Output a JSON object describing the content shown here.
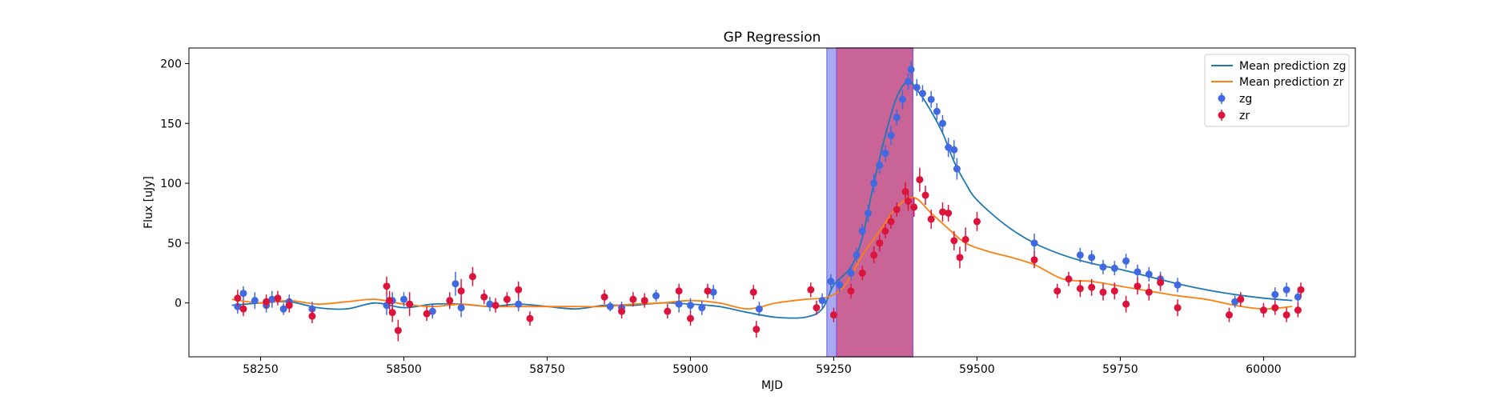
{
  "chart_data": {
    "type": "scatter",
    "title": "GP Regression",
    "xlabel": "MJD",
    "ylabel": "Flux [uJy]",
    "xlim": [
      58125,
      60160
    ],
    "ylim": [
      -45,
      213
    ],
    "xticks": [
      58250,
      58500,
      58750,
      59000,
      59250,
      59500,
      59750,
      60000
    ],
    "yticks": [
      0,
      50,
      100,
      150,
      200
    ],
    "colors": {
      "zg": "#4169e1",
      "zr": "#dc143c",
      "line_zg": "#1f77b4",
      "line_zr": "#ff7f0e",
      "span_zg": "#a0a0f0",
      "span_zr": "#c86496",
      "span_edge": "#9955cc"
    },
    "spans": [
      {
        "name": "zg",
        "x0": 59238,
        "x1": 59388
      },
      {
        "name": "zr",
        "x0": 59255,
        "x1": 59388
      }
    ],
    "legend": {
      "position": "top-right",
      "entries": [
        "Mean prediction zg",
        "Mean prediction zr",
        "zg",
        "zr"
      ]
    },
    "mean_zg": {
      "x": [
        58200,
        58250,
        58300,
        58350,
        58400,
        58450,
        58500,
        58550,
        58600,
        58650,
        58700,
        58750,
        58800,
        58850,
        58900,
        58950,
        59000,
        59050,
        59100,
        59150,
        59200,
        59230,
        59250,
        59280,
        59300,
        59320,
        59340,
        59360,
        59380,
        59400,
        59420,
        59440,
        59460,
        59480,
        59500,
        59550,
        59600,
        59650,
        59700,
        59750,
        59800,
        59850,
        59900,
        59950,
        60000,
        60050
      ],
      "y": [
        -2,
        0,
        1,
        -4,
        -5,
        0,
        -4,
        -1,
        -1,
        -3,
        -1,
        -3,
        -5,
        -2,
        -2,
        0,
        -1,
        -3,
        -8,
        -12,
        -12,
        -5,
        15,
        30,
        55,
        100,
        140,
        172,
        185,
        175,
        160,
        142,
        118,
        100,
        86,
        65,
        50,
        40,
        33,
        28,
        22,
        16,
        11,
        7,
        4,
        2
      ]
    },
    "mean_zr": {
      "x": [
        58200,
        58250,
        58300,
        58350,
        58400,
        58450,
        58500,
        58550,
        58600,
        58650,
        58700,
        58750,
        58800,
        58850,
        58900,
        58950,
        59000,
        59050,
        59100,
        59150,
        59200,
        59240,
        59270,
        59300,
        59330,
        59360,
        59390,
        59420,
        59450,
        59480,
        59520,
        59560,
        59600,
        59650,
        59700,
        59750,
        59800,
        59850,
        59900,
        59950,
        60000,
        60050
      ],
      "y": [
        3,
        0,
        2,
        -1,
        1,
        3,
        -1,
        -3,
        -1,
        -3,
        -3,
        -3,
        -3,
        -3,
        -1,
        0,
        2,
        0,
        -5,
        0,
        3,
        5,
        15,
        40,
        60,
        80,
        88,
        75,
        62,
        50,
        43,
        38,
        32,
        20,
        18,
        14,
        10,
        6,
        3,
        -2,
        -5,
        -3
      ]
    },
    "zg_points": [
      [
        58210,
        -3,
        6
      ],
      [
        58220,
        8,
        6
      ],
      [
        58240,
        2,
        7
      ],
      [
        58260,
        -2,
        6
      ],
      [
        58270,
        3,
        7
      ],
      [
        58290,
        -5,
        5
      ],
      [
        58300,
        1,
        6
      ],
      [
        58340,
        -5,
        6
      ],
      [
        58470,
        -2,
        8
      ],
      [
        58480,
        2,
        7
      ],
      [
        58500,
        3,
        6
      ],
      [
        58550,
        -7,
        6
      ],
      [
        58590,
        16,
        10
      ],
      [
        58600,
        -4,
        8
      ],
      [
        58650,
        -1,
        6
      ],
      [
        58700,
        -1,
        6
      ],
      [
        58860,
        -3,
        4
      ],
      [
        58880,
        -4,
        5
      ],
      [
        58940,
        6,
        5
      ],
      [
        58980,
        -1,
        7
      ],
      [
        59000,
        -2,
        6
      ],
      [
        59020,
        -4,
        6
      ],
      [
        59040,
        9,
        6
      ],
      [
        59120,
        -5,
        6
      ],
      [
        59230,
        2,
        6
      ],
      [
        59245,
        18,
        6
      ],
      [
        59260,
        15,
        6
      ],
      [
        59280,
        25,
        6
      ],
      [
        59290,
        40,
        6
      ],
      [
        59300,
        60,
        6
      ],
      [
        59310,
        75,
        7
      ],
      [
        59320,
        100,
        8
      ],
      [
        59330,
        115,
        7
      ],
      [
        59340,
        125,
        7
      ],
      [
        59350,
        140,
        8
      ],
      [
        59360,
        155,
        7
      ],
      [
        59370,
        170,
        8
      ],
      [
        59380,
        185,
        7
      ],
      [
        59385,
        195,
        7
      ],
      [
        59395,
        180,
        7
      ],
      [
        59405,
        175,
        7
      ],
      [
        59420,
        170,
        7
      ],
      [
        59430,
        160,
        7
      ],
      [
        59440,
        150,
        7
      ],
      [
        59450,
        130,
        8
      ],
      [
        59460,
        128,
        8
      ],
      [
        59465,
        112,
        9
      ],
      [
        59600,
        50,
        8
      ],
      [
        59680,
        40,
        6
      ],
      [
        59700,
        38,
        6
      ],
      [
        59720,
        30,
        6
      ],
      [
        59740,
        29,
        6
      ],
      [
        59760,
        35,
        6
      ],
      [
        59780,
        26,
        6
      ],
      [
        59800,
        24,
        6
      ],
      [
        59820,
        20,
        6
      ],
      [
        59850,
        15,
        6
      ],
      [
        59950,
        1,
        5
      ],
      [
        60020,
        7,
        6
      ],
      [
        60040,
        11,
        6
      ],
      [
        60060,
        5,
        6
      ]
    ],
    "zr_points": [
      [
        58210,
        4,
        7
      ],
      [
        58220,
        -5,
        6
      ],
      [
        58260,
        1,
        6
      ],
      [
        58280,
        4,
        6
      ],
      [
        58300,
        -2,
        6
      ],
      [
        58340,
        -11,
        6
      ],
      [
        58470,
        14,
        8
      ],
      [
        58475,
        2,
        8
      ],
      [
        58480,
        -8,
        8
      ],
      [
        58490,
        -23,
        9
      ],
      [
        58510,
        -1,
        10
      ],
      [
        58540,
        -9,
        6
      ],
      [
        58580,
        2,
        7
      ],
      [
        58600,
        10,
        10
      ],
      [
        58620,
        22,
        8
      ],
      [
        58640,
        5,
        6
      ],
      [
        58660,
        -2,
        6
      ],
      [
        58680,
        3,
        6
      ],
      [
        58700,
        11,
        7
      ],
      [
        58720,
        -13,
        6
      ],
      [
        58850,
        5,
        6
      ],
      [
        58880,
        -7,
        6
      ],
      [
        58900,
        3,
        6
      ],
      [
        58920,
        2,
        6
      ],
      [
        58960,
        -7,
        6
      ],
      [
        58980,
        10,
        6
      ],
      [
        59000,
        -13,
        6
      ],
      [
        59030,
        10,
        6
      ],
      [
        59110,
        9,
        6
      ],
      [
        59115,
        -22,
        7
      ],
      [
        59210,
        11,
        6
      ],
      [
        59220,
        -4,
        6
      ],
      [
        59250,
        -10,
        6
      ],
      [
        59280,
        10,
        6
      ],
      [
        59300,
        25,
        6
      ],
      [
        59320,
        40,
        7
      ],
      [
        59330,
        50,
        7
      ],
      [
        59340,
        60,
        6
      ],
      [
        59350,
        68,
        6
      ],
      [
        59360,
        78,
        6
      ],
      [
        59375,
        93,
        8
      ],
      [
        59380,
        85,
        8
      ],
      [
        59390,
        80,
        8
      ],
      [
        59400,
        103,
        10
      ],
      [
        59410,
        90,
        8
      ],
      [
        59420,
        70,
        8
      ],
      [
        59440,
        76,
        8
      ],
      [
        59450,
        75,
        7
      ],
      [
        59460,
        52,
        8
      ],
      [
        59470,
        38,
        9
      ],
      [
        59480,
        53,
        10
      ],
      [
        59500,
        68,
        8
      ],
      [
        59600,
        36,
        7
      ],
      [
        59640,
        10,
        6
      ],
      [
        59660,
        20,
        6
      ],
      [
        59680,
        12,
        7
      ],
      [
        59700,
        13,
        7
      ],
      [
        59720,
        9,
        7
      ],
      [
        59740,
        10,
        7
      ],
      [
        59760,
        -1,
        7
      ],
      [
        59780,
        14,
        7
      ],
      [
        59800,
        9,
        7
      ],
      [
        59820,
        17,
        7
      ],
      [
        59850,
        -4,
        7
      ],
      [
        59940,
        -10,
        6
      ],
      [
        59960,
        3,
        6
      ],
      [
        60000,
        -6,
        6
      ],
      [
        60020,
        -4,
        6
      ],
      [
        60040,
        -10,
        6
      ],
      [
        60060,
        -6,
        6
      ],
      [
        60065,
        11,
        6
      ]
    ]
  }
}
